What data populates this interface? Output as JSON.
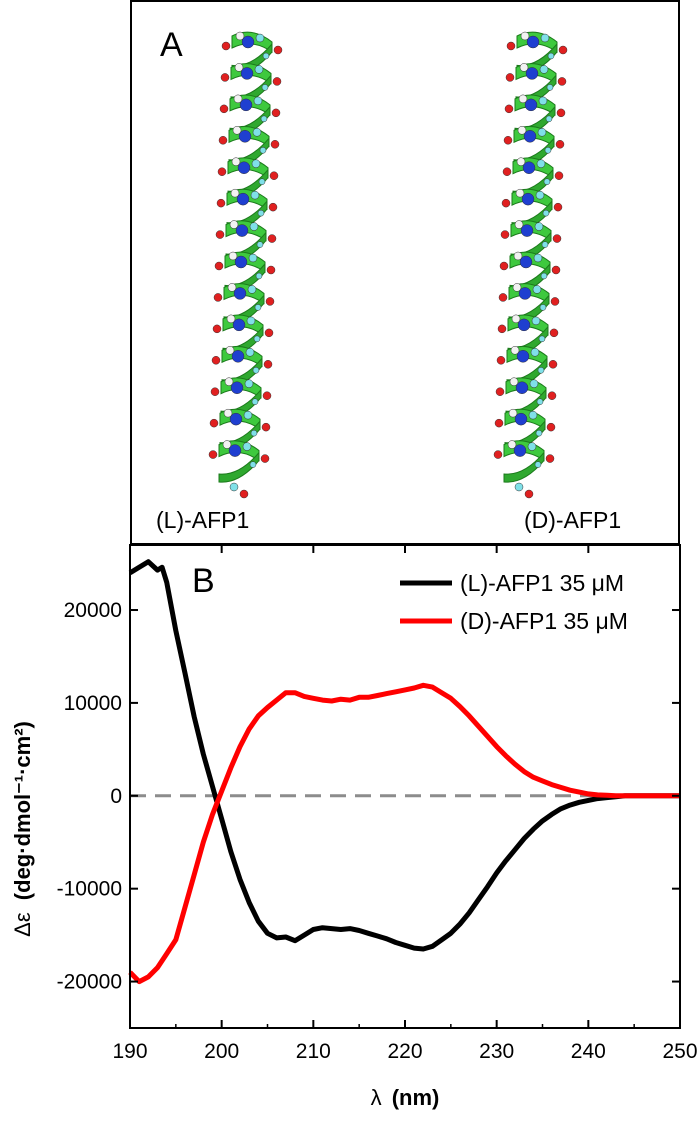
{
  "panel_a": {
    "label": "A",
    "left_molecule_label": "(L)-AFP1",
    "right_molecule_label": "(D)-AFP1",
    "colors": {
      "ribbon": "#3ec93e",
      "nitrogen": "#1f3fd0",
      "oxygen": "#e02020",
      "carbon": "#7fe0e8",
      "hydrogen": "#f2f2f2"
    }
  },
  "panel_b": {
    "label": "B"
  },
  "chart_data": {
    "type": "line",
    "xlabel_symbol": "λ",
    "xlabel_unit": "(nm)",
    "ylabel_symbol": "Δε",
    "ylabel_unit": "(deg·dmol⁻¹·cm²)",
    "xlim": [
      190,
      250
    ],
    "ylim": [
      -25000,
      27000
    ],
    "xticks": [
      190,
      200,
      210,
      220,
      230,
      240,
      250
    ],
    "yticks": [
      -20000,
      -10000,
      0,
      10000,
      20000
    ],
    "zero_line": {
      "y": 0,
      "style": "dashed",
      "color": "#8c8c8c"
    },
    "legend_position": "top-right",
    "series": [
      {
        "name": "(L)-AFP1 35 μM",
        "color": "#000000",
        "x": [
          190,
          191,
          192,
          193,
          193.5,
          194,
          195,
          196,
          197,
          198,
          199,
          200,
          201,
          202,
          203,
          204,
          205,
          206,
          207,
          208,
          209,
          210,
          211,
          212,
          213,
          214,
          215,
          216,
          217,
          218,
          219,
          220,
          221,
          222,
          223,
          224,
          225,
          226,
          227,
          228,
          229,
          230,
          231,
          232,
          233,
          234,
          235,
          236,
          237,
          238,
          239,
          240,
          241,
          242,
          243,
          244,
          245,
          246,
          247,
          248,
          249,
          250
        ],
        "y": [
          24000,
          24600,
          25200,
          24300,
          24600,
          23000,
          17800,
          13200,
          8500,
          4500,
          1000,
          -2500,
          -6000,
          -9000,
          -11500,
          -13500,
          -14800,
          -15300,
          -15200,
          -15600,
          -15000,
          -14400,
          -14200,
          -14300,
          -14400,
          -14300,
          -14500,
          -14800,
          -15100,
          -15400,
          -15800,
          -16100,
          -16400,
          -16500,
          -16200,
          -15500,
          -14800,
          -13800,
          -12600,
          -11200,
          -9800,
          -8300,
          -7000,
          -5800,
          -4600,
          -3600,
          -2700,
          -2000,
          -1400,
          -1000,
          -700,
          -500,
          -300,
          -200,
          -100,
          0,
          0,
          0,
          0,
          0,
          0,
          0
        ]
      },
      {
        "name": "(D)-AFP1 35 μM",
        "color": "#ff0000",
        "x": [
          190,
          191,
          192,
          193,
          194,
          195,
          196,
          197,
          198,
          199,
          200,
          201,
          202,
          203,
          204,
          205,
          206,
          207,
          208,
          209,
          210,
          211,
          212,
          213,
          214,
          215,
          216,
          217,
          218,
          219,
          220,
          221,
          222,
          223,
          224,
          225,
          226,
          227,
          228,
          229,
          230,
          231,
          232,
          233,
          234,
          235,
          236,
          237,
          238,
          239,
          240,
          241,
          242,
          243,
          244,
          245,
          246,
          247,
          248,
          249,
          250
        ],
        "y": [
          -19000,
          -20000,
          -19500,
          -18500,
          -17000,
          -15500,
          -12000,
          -8500,
          -5000,
          -2000,
          500,
          3000,
          5300,
          7200,
          8600,
          9500,
          10300,
          11100,
          11100,
          10700,
          10500,
          10300,
          10200,
          10400,
          10300,
          10600,
          10600,
          10800,
          11000,
          11200,
          11400,
          11600,
          11900,
          11700,
          11100,
          10500,
          9600,
          8600,
          7500,
          6400,
          5300,
          4300,
          3400,
          2600,
          2000,
          1600,
          1200,
          900,
          600,
          400,
          200,
          100,
          50,
          0,
          0,
          0,
          0,
          0,
          0,
          0,
          0
        ]
      }
    ]
  }
}
